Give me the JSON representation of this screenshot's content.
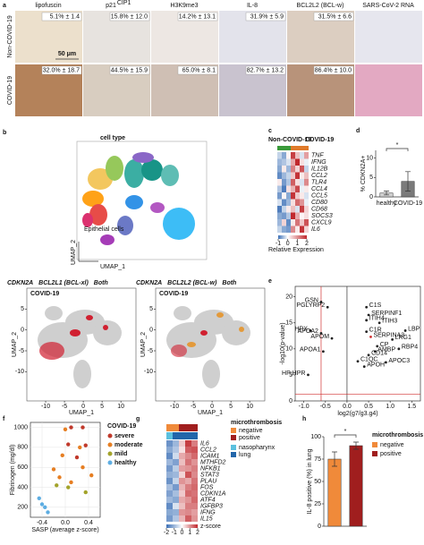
{
  "panel_labels": [
    "a",
    "b",
    "c",
    "d",
    "e",
    "f",
    "g",
    "h"
  ],
  "panel_a": {
    "columns": [
      {
        "name": "lipofuscin"
      },
      {
        "name": "p21",
        "sup": "CIP1"
      },
      {
        "name": "H3K9me3"
      },
      {
        "name": "IL-8"
      },
      {
        "name": "BCL2L2 (BCL-w)"
      },
      {
        "name": "SARS-CoV-2 RNA"
      }
    ],
    "rows": [
      {
        "label": "Non-COVID-19",
        "values": [
          "5.1% ± 1.4",
          "15.8% ± 12.0",
          "14.2% ± 13.1",
          "31.9% ± 5.9",
          "31.5% ± 6.6"
        ]
      },
      {
        "label": "COVID-19",
        "values": [
          "32.0% ± 18.7",
          "44.5% ± 15.9",
          "65.0% ± 8.1",
          "82.7% ± 13.2",
          "86.4% ± 10.0"
        ]
      }
    ],
    "scale_bar": "50 μm"
  },
  "panel_b": {
    "title": "cell type",
    "highlight_label": "Epithelial cells",
    "x_label": "UMAP_1",
    "y_label": "UMAP_2",
    "xticks": [
      -10,
      -5,
      0,
      5,
      10
    ],
    "xlim": [
      -15,
      14
    ],
    "yticks": [
      5,
      0,
      -5,
      -10
    ],
    "ylim": [
      -17,
      10
    ],
    "feature_plots": [
      {
        "legend": [
          {
            "name": "CDKN2A",
            "color": "#e39a3b"
          },
          {
            "name": "BCL2L1 (BCL-xl)",
            "color": "#8a4fa0"
          },
          {
            "name": "Both",
            "color": "#d02030"
          }
        ],
        "title": "COVID-19"
      },
      {
        "legend": [
          {
            "name": "CDKN2A",
            "color": "#e39a3b"
          },
          {
            "name": "BCL2L2 (BCL-w)",
            "color": "#8a4fa0"
          },
          {
            "name": "Both",
            "color": "#d02030"
          }
        ],
        "title": "COVID-19"
      }
    ]
  },
  "chart_data": [
    {
      "type": "heatmap",
      "groups": [
        {
          "name": "Non-COVID-19",
          "color": "#3a9a3a",
          "count": 3
        },
        {
          "name": "COVID-19",
          "color": "#e07a2a",
          "count": 4
        }
      ],
      "rows": [
        "TNF",
        "IFNG",
        "IL12B",
        "CCL2",
        "TLR4",
        "CCL4",
        "CCL5",
        "CD80",
        "CD68",
        "SOCS3",
        "CXCL9",
        "IL6"
      ],
      "values": [
        [
          -0.3,
          -0.6,
          0.1,
          1.8,
          0.6,
          -0.2,
          0.9
        ],
        [
          -0.5,
          -0.4,
          -0.2,
          0.8,
          2.0,
          0.3,
          -0.1
        ],
        [
          -0.6,
          0.2,
          -0.5,
          1.2,
          0.4,
          1.6,
          -0.3
        ],
        [
          -0.8,
          -0.5,
          -0.3,
          0.5,
          1.9,
          0.2,
          0.6
        ],
        [
          0.2,
          -0.7,
          -0.4,
          1.5,
          0.3,
          -0.2,
          1.1
        ],
        [
          -0.4,
          -0.9,
          0.3,
          0.7,
          1.7,
          -0.1,
          0.2
        ],
        [
          -0.7,
          0.1,
          -0.6,
          1.9,
          0.5,
          0.2,
          -0.2
        ],
        [
          -0.2,
          -0.8,
          -0.5,
          0.3,
          1.4,
          1.0,
          -0.1
        ],
        [
          -0.9,
          -0.3,
          0.2,
          0.6,
          -0.2,
          1.8,
          0.4
        ],
        [
          -0.6,
          -0.7,
          -0.4,
          2.0,
          0.8,
          0.1,
          0.3
        ],
        [
          -0.5,
          0.4,
          -0.8,
          0.2,
          1.3,
          0.5,
          1.6
        ],
        [
          -0.3,
          -0.6,
          -0.7,
          1.1,
          0.2,
          1.9,
          0.4
        ]
      ],
      "clim": [
        -1,
        2
      ],
      "colorbar_ticks": [
        -1,
        0,
        1,
        2
      ],
      "colorbar_label": "Relative Expression"
    },
    {
      "type": "bar",
      "y_label": "% CDKN2A+",
      "categories": [
        "healthy",
        "COVID-19"
      ],
      "values": [
        1,
        4
      ],
      "errors": [
        0.5,
        2.5
      ],
      "colors": [
        "#cfcfcf",
        "#7a7a7a"
      ],
      "ylim": [
        0,
        12
      ],
      "yticks": [
        0,
        5,
        10
      ],
      "annotation": "*"
    },
    {
      "type": "scatter",
      "x_label": "log2(g7/g3.g4)",
      "y_label": "-log10(p-value)",
      "xlim": [
        -1.2,
        1.7
      ],
      "xticks": [
        {
          "value": -1,
          "label": "-1.0"
        },
        -0.5,
        {
          "value": 0,
          "label": "0.0"
        },
        0.5,
        {
          "value": 1,
          "label": "1.0"
        },
        1.5
      ],
      "ylim": [
        0,
        22
      ],
      "yticks": [
        0,
        5,
        10,
        15,
        20
      ],
      "point_color": "#222222",
      "threshold_color": "#d03030",
      "vlines": [
        -0.6,
        0
      ],
      "hline": 1.3,
      "points": [
        {
          "label": "GSN",
          "x": -0.6,
          "y": 19
        },
        {
          "label": "PGLYRP2",
          "x": -0.45,
          "y": 18
        },
        {
          "label": "HPX",
          "x": -0.85,
          "y": 13.5
        },
        {
          "label": "APOA2",
          "x": -0.6,
          "y": 13
        },
        {
          "label": "APOM",
          "x": -0.35,
          "y": 12
        },
        {
          "label": "APOA1",
          "x": -0.55,
          "y": 9.5
        },
        {
          "label": "HP;HPR",
          "x": -0.9,
          "y": 5
        },
        {
          "label": "C1S",
          "x": 0.45,
          "y": 18
        },
        {
          "label": "SERPINF1",
          "x": 0.5,
          "y": 16.5
        },
        {
          "label": "ITIH4",
          "x": 0.45,
          "y": 15.5
        },
        {
          "label": "ITIH3",
          "x": 0.75,
          "y": 15
        },
        {
          "label": "C1R",
          "x": 0.45,
          "y": 13.3
        },
        {
          "label": "SERPINA3",
          "x": 0.55,
          "y": 12.3,
          "color": "#d03030"
        },
        {
          "label": "LBP",
          "x": 1.35,
          "y": 13.5
        },
        {
          "label": "LRG1",
          "x": 1.05,
          "y": 11.8
        },
        {
          "label": "RBP4",
          "x": 1.2,
          "y": 10
        },
        {
          "label": "CP",
          "x": 0.7,
          "y": 10.5
        },
        {
          "label": "AMBP",
          "x": 0.65,
          "y": 9.5
        },
        {
          "label": "CD14",
          "x": 0.5,
          "y": 8.8
        },
        {
          "label": "C1QC",
          "x": 0.25,
          "y": 7.6
        },
        {
          "label": "APOH",
          "x": 0.4,
          "y": 6.6
        },
        {
          "label": "APOC3",
          "x": 0.9,
          "y": 7.4
        }
      ]
    },
    {
      "type": "scatter",
      "x_label": "SASP (average z-score)",
      "y_label": "Fibrinogen (mg/dl)",
      "legend_title": "COVID-19",
      "xlim": [
        -0.6,
        0.6
      ],
      "xticks": [
        -0.4,
        {
          "value": 0,
          "label": "0.0"
        },
        0.4
      ],
      "ylim": [
        100,
        1050
      ],
      "yticks": [
        200,
        400,
        600,
        800,
        1000
      ],
      "series": [
        {
          "name": "severe",
          "color": "#c0392b",
          "x": [
            0.1,
            0.3,
            0.35,
            0.05,
            0.2
          ],
          "y": [
            1000,
            1000,
            820,
            830,
            700
          ]
        },
        {
          "name": "moderate",
          "color": "#e67e22",
          "x": [
            0.0,
            0.25,
            -0.05,
            0.3,
            -0.2,
            0.45,
            -0.1,
            0.1
          ],
          "y": [
            980,
            800,
            720,
            600,
            580,
            520,
            500,
            450
          ]
        },
        {
          "name": "mild",
          "color": "#a3a32a",
          "x": [
            -0.15,
            0.05,
            0.35
          ],
          "y": [
            420,
            400,
            350
          ]
        },
        {
          "name": "healthy",
          "color": "#5dade2",
          "x": [
            -0.4,
            -0.35,
            -0.45,
            -0.3
          ],
          "y": [
            230,
            200,
            290,
            150
          ]
        }
      ]
    },
    {
      "type": "heatmap",
      "annotations": [
        {
          "name": "microthrombosis",
          "levels": [
            {
              "name": "negative",
              "color": "#f08a3a"
            },
            {
              "name": "positive",
              "color": "#a01e1e"
            }
          ],
          "columns": [
            0,
            0,
            1,
            1,
            1
          ]
        },
        {
          "levels": [
            {
              "name": "nasopharynx",
              "color": "#5bc0de"
            },
            {
              "name": "lung",
              "color": "#2266aa"
            }
          ],
          "columns": [
            0,
            1,
            1,
            1,
            1
          ]
        }
      ],
      "rows": [
        "IL6",
        "CCL2",
        "ICAM1",
        "MTHFD2",
        "NFKB1",
        "STAT3",
        "PLAU",
        "FOS",
        "CDKN1A",
        "ATF4",
        "IGFBP3",
        "IFNG",
        "IL15"
      ],
      "values": [
        [
          -1.5,
          -1.0,
          0.5,
          1.8,
          1.2
        ],
        [
          -1.2,
          -0.8,
          0.3,
          1.5,
          1.6
        ],
        [
          -1.6,
          -0.5,
          0.8,
          1.1,
          1.4
        ],
        [
          -1.0,
          -1.3,
          0.6,
          1.3,
          1.0
        ],
        [
          -1.4,
          -0.7,
          0.9,
          1.0,
          1.2
        ],
        [
          -1.1,
          -1.0,
          0.4,
          1.6,
          1.1
        ],
        [
          -1.5,
          -0.6,
          1.0,
          0.8,
          1.3
        ],
        [
          -0.9,
          -1.4,
          0.7,
          1.2,
          1.4
        ],
        [
          -1.3,
          -0.9,
          0.5,
          1.4,
          1.3
        ],
        [
          -1.0,
          -1.2,
          0.8,
          1.0,
          1.4
        ],
        [
          -1.6,
          -0.4,
          0.6,
          1.2,
          1.2
        ],
        [
          -1.2,
          -1.1,
          1.0,
          1.1,
          0.9
        ],
        [
          -1.4,
          -0.8,
          0.7,
          1.5,
          1.0
        ]
      ],
      "clim": [
        -2,
        2
      ],
      "colorbar_ticks": [
        -2,
        -1,
        0,
        1,
        2
      ],
      "colorbar_label": "z-score"
    },
    {
      "type": "bar",
      "y_label": "IL-8 positive (%) in lung",
      "legend_title": "microthrombosis",
      "categories": [
        "negative",
        "positive"
      ],
      "values": [
        75,
        90
      ],
      "errors": [
        8,
        4
      ],
      "colors": [
        "#f08a3a",
        "#a01e1e"
      ],
      "ylim": [
        0,
        100
      ],
      "yticks": [
        0,
        25,
        50,
        75,
        100
      ],
      "annotation": "*"
    }
  ]
}
